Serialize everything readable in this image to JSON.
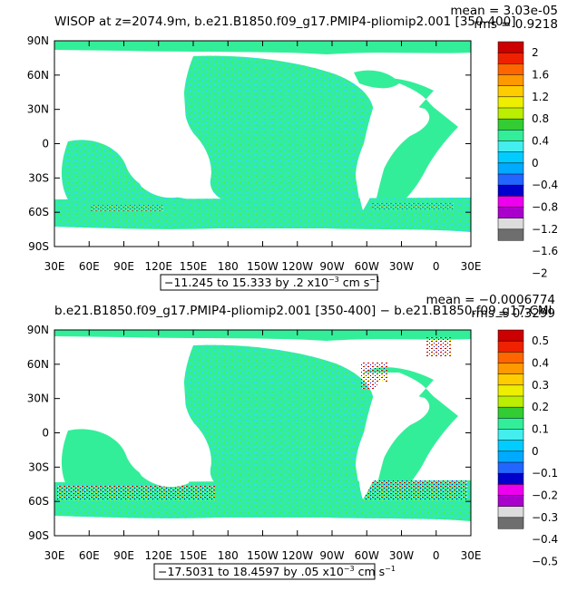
{
  "colors": {
    "ocean_base": "#33ee99",
    "ocean_cyan": "#33ddee",
    "land": "#ffffff",
    "frame": "#000000"
  },
  "colorbar_palette": [
    "#6e6e6e",
    "#dcdcdc",
    "#aa00cc",
    "#ee00ee",
    "#0000cc",
    "#2266ff",
    "#00aaff",
    "#00ccff",
    "#44eeee",
    "#33ee99",
    "#33cc33",
    "#bbee00",
    "#eeee00",
    "#ffcc00",
    "#ff9900",
    "#ff6600",
    "#ee2200",
    "#cc0000"
  ],
  "x_ticks": [
    "30E",
    "60E",
    "90E",
    "120E",
    "150E",
    "180",
    "150W",
    "120W",
    "90W",
    "60W",
    "30W",
    "0",
    "30E"
  ],
  "y_ticks": [
    "90N",
    "60N",
    "30N",
    "0",
    "30S",
    "60S",
    "90S"
  ],
  "panels": [
    {
      "title": "WISOP at z=2074.9m, b.e21.B1850.f09_g17.PMIP4-pliomip2.001 [350-400]",
      "mean": "mean = 3.03e-05",
      "rms": "rms = 0.9218",
      "range_main": "−11.245 to 15.333 by .2 x10",
      "range_exp": "−3",
      "range_unit": " cm s",
      "range_unit_exp": "−1",
      "colorbar_labels": [
        "2",
        "1.6",
        "1.2",
        "0.8",
        "0.4",
        "0",
        "−0.4",
        "−0.8",
        "−1.2",
        "−1.6",
        "−2"
      ]
    },
    {
      "title": "b.e21.B1850.f09_g17.PMIP4-pliomip2.001 [350-400] − b.e21.B1850.f09_g17.CMI",
      "mean": "mean = −0.0006774",
      "rms": "rms = 0.3299",
      "range_main": "−17.5031 to 18.4597 by .05 x10",
      "range_exp": "−3",
      "range_unit": " cm s",
      "range_unit_exp": "−1",
      "colorbar_labels": [
        "0.5",
        "0.4",
        "0.3",
        "0.2",
        "0.1",
        "0",
        "−0.1",
        "−0.2",
        "−0.3",
        "−0.4",
        "−0.5"
      ]
    }
  ]
}
